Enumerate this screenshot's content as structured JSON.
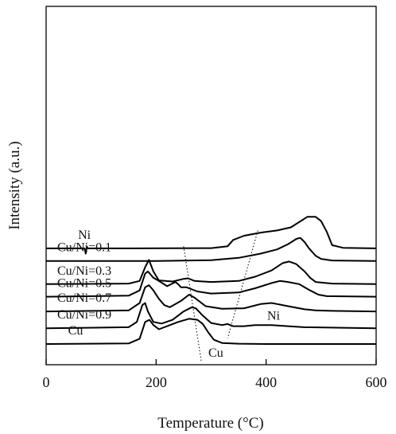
{
  "chart_data": {
    "type": "line",
    "xlabel": "Temperature (°C)",
    "ylabel": "Intensity (a.u.)",
    "xlim": [
      0,
      600
    ],
    "xticks": [
      0,
      200,
      400,
      600
    ],
    "grid": false,
    "series": [
      {
        "name": "Ni",
        "offset": 9.1,
        "spike_x": 73,
        "x": [
          0,
          150,
          300,
          330,
          340,
          360,
          390,
          420,
          445,
          460,
          475,
          490,
          500,
          510,
          520,
          540,
          600
        ],
        "y": [
          0,
          0,
          0.02,
          0.2,
          0.8,
          1.2,
          1.5,
          1.7,
          2.0,
          2.5,
          3.0,
          3.0,
          2.6,
          1.6,
          0.3,
          0.05,
          0
        ]
      },
      {
        "name": "Cu/Ni=0.1",
        "offset": 7.9,
        "x": [
          0,
          200,
          300,
          350,
          390,
          420,
          440,
          455,
          462,
          470,
          478,
          490,
          500,
          520,
          600
        ],
        "y": [
          0,
          0,
          0.08,
          0.3,
          0.7,
          1.1,
          1.6,
          2.1,
          2.2,
          1.8,
          1.2,
          0.5,
          0.2,
          0.05,
          0
        ]
      },
      {
        "name": "Cu/Ni=0.3",
        "offset": 5.7,
        "x": [
          0,
          150,
          170,
          180,
          187,
          195,
          205,
          230,
          250,
          258,
          270,
          300,
          350,
          380,
          410,
          430,
          442,
          455,
          470,
          480,
          490,
          520,
          600
        ],
        "y": [
          0,
          0.05,
          0.3,
          1.6,
          2.3,
          1.2,
          0.35,
          0.25,
          0.5,
          0.55,
          0.3,
          0.2,
          0.3,
          0.7,
          1.3,
          2.0,
          2.15,
          1.9,
          1.2,
          0.6,
          0.2,
          0.05,
          0
        ]
      },
      {
        "name": "Cu/Ni=0.5",
        "offset": 4.5,
        "x": [
          0,
          150,
          170,
          180,
          185,
          195,
          205,
          220,
          235,
          240,
          245,
          255,
          275,
          300,
          350,
          380,
          410,
          425,
          440,
          460,
          480,
          495,
          510,
          600
        ],
        "y": [
          0,
          0.1,
          0.6,
          2.2,
          2.4,
          1.8,
          1.5,
          1.0,
          1.4,
          1.2,
          0.9,
          0.9,
          0.5,
          0.3,
          0.4,
          0.8,
          1.3,
          1.5,
          1.4,
          1.2,
          0.6,
          0.2,
          0.05,
          0
        ]
      },
      {
        "name": "Cu/Ni=0.7",
        "offset": 3.1,
        "x": [
          0,
          150,
          170,
          180,
          187,
          195,
          205,
          215,
          225,
          245,
          260,
          270,
          290,
          320,
          360,
          390,
          410,
          420,
          440,
          470,
          490,
          520,
          600
        ],
        "y": [
          0,
          0.1,
          0.8,
          2.3,
          2.5,
          2.0,
          1.2,
          0.6,
          0.4,
          1.0,
          1.6,
          1.3,
          0.5,
          0.25,
          0.3,
          0.7,
          0.8,
          0.7,
          0.5,
          0.2,
          0.1,
          0.05,
          0
        ]
      },
      {
        "name": "Cu/Ni=0.9",
        "offset": 1.5,
        "x": [
          0,
          150,
          165,
          175,
          180,
          185,
          195,
          210,
          230,
          250,
          265,
          272,
          285,
          300,
          320,
          330,
          340,
          360,
          380,
          410,
          440,
          470,
          600
        ],
        "y": [
          0,
          0.1,
          0.6,
          2.2,
          2.4,
          1.6,
          0.6,
          0.45,
          0.8,
          1.6,
          2.0,
          1.9,
          1.2,
          0.5,
          0.3,
          0.4,
          0.2,
          0.2,
          0.3,
          0.3,
          0.2,
          0.1,
          0
        ]
      },
      {
        "name": "Cu",
        "offset": 0.0,
        "x": [
          0,
          150,
          170,
          180,
          188,
          195,
          205,
          220,
          240,
          260,
          275,
          285,
          295,
          305,
          320,
          350,
          400,
          600
        ],
        "y": [
          0,
          0.05,
          0.5,
          2.1,
          2.3,
          1.8,
          1.4,
          1.7,
          2.1,
          2.4,
          2.3,
          1.9,
          1.1,
          0.4,
          0.1,
          0.03,
          0,
          0
        ]
      }
    ],
    "annotations": [
      {
        "text": "Cu",
        "x": 295,
        "y": -1.2
      },
      {
        "text": "Ni",
        "x": 402,
        "y": 2.3
      }
    ],
    "guide_lines": [
      {
        "name": "Cu",
        "from": [
          250,
          9.3
        ],
        "to": [
          282,
          -1.6
        ]
      },
      {
        "name": "Ni",
        "from": [
          385,
          10.8
        ],
        "to": [
          330,
          0.55
        ]
      }
    ]
  }
}
